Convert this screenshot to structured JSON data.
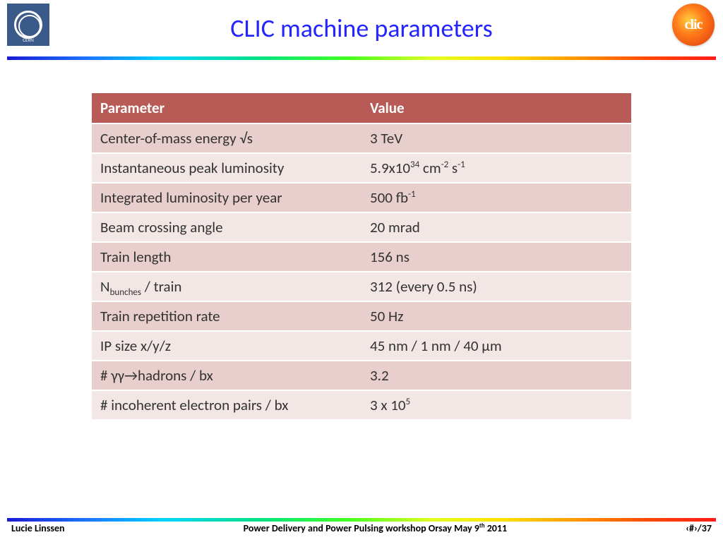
{
  "title": "CLIC machine parameters",
  "logos": {
    "left": "CERN",
    "right": "clic"
  },
  "colors": {
    "title_color": "#2424ff",
    "table_header_bg": "#b85a56",
    "table_header_fg": "#ffffff",
    "row_odd_bg": "#e8cfcd",
    "row_even_bg": "#f3e7e6",
    "text_color": "#323232",
    "rainbow_stops": [
      "#1a1ad4",
      "#1a7aff",
      "#00d4ff",
      "#00e08a",
      "#40ff20",
      "#e0ff20",
      "#ffe000",
      "#ff9a00",
      "#ff4a00",
      "#ff1a1a"
    ]
  },
  "table": {
    "columns": [
      "Parameter",
      "Value"
    ],
    "rows": [
      {
        "param_html": "Center-of-mass energy √s",
        "value_html": "3 TeV"
      },
      {
        "param_html": "Instantaneous peak luminosity",
        "value_html": "5.9x10<sup>34</sup> cm<sup>-2</sup> s<sup>-1</sup>"
      },
      {
        "param_html": "Integrated luminosity per year",
        "value_html": "500 fb<sup>-1</sup>"
      },
      {
        "param_html": "Beam crossing angle",
        "value_html": "20 mrad"
      },
      {
        "param_html": "Train length",
        "value_html": "156 ns"
      },
      {
        "param_html": "N<sub>bunches</sub> / train",
        "value_html": "312 (every 0.5 ns)"
      },
      {
        "param_html": "Train repetition rate",
        "value_html": "50 Hz"
      },
      {
        "param_html": "IP size x/y/z",
        "value_html": "45 nm / 1 nm / 40 µm"
      },
      {
        "param_html": "# γγ→hadrons / bx",
        "value_html": "3.2"
      },
      {
        "param_html": "# incoherent electron pairs / bx",
        "value_html": "3 x 10<sup>5</sup>"
      }
    ],
    "font_size": 21,
    "col1_width_pct": 50
  },
  "footer": {
    "left": "Lucie Linssen",
    "center_html": "Power Delivery and Power Pulsing workshop Orsay May 9<sup>th</sup> 2011",
    "right": "‹#›/37",
    "font_size": 14
  }
}
